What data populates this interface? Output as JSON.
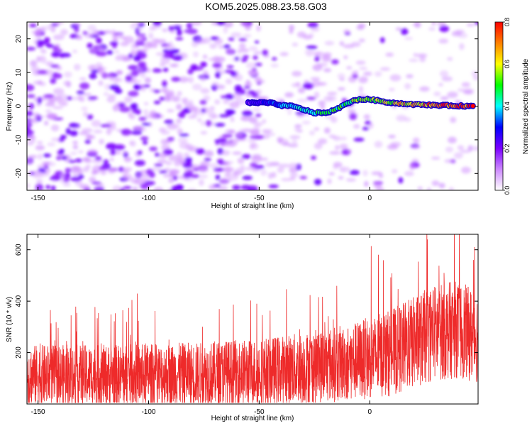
{
  "title": "KOM5.2025.088.23.58.G03",
  "chart_data": [
    {
      "type": "heatmap",
      "panel": "spectrogram",
      "xlabel": "Height of straight line (km)",
      "ylabel": "Frequency (Hz)",
      "xlim": [
        -155,
        49
      ],
      "ylim": [
        -25,
        25
      ],
      "xticks": [
        -150,
        -100,
        -50,
        0
      ],
      "yticks": [
        -20,
        -10,
        0,
        10,
        20
      ],
      "colorbar": {
        "label": "Normalized spectral amplitude",
        "range": [
          0.0,
          0.8
        ],
        "ticks": [
          "0.0",
          "0.2",
          "0.4",
          "0.6",
          "0.8"
        ],
        "colors": [
          "#ffffff",
          "#cc88ff",
          "#7a00ff",
          "#0000ff",
          "#00ffff",
          "#00ff00",
          "#ffff00",
          "#ff8000",
          "#ff0000"
        ]
      },
      "signal_track": {
        "x": [
          -55,
          -45,
          -40,
          -35,
          -30,
          -25,
          -20,
          -15,
          -10,
          -5,
          0,
          10,
          20,
          30,
          40,
          47
        ],
        "frequency": [
          1,
          1,
          0.2,
          0,
          -1,
          -2,
          -2,
          -1,
          1,
          2,
          2,
          1,
          0.5,
          0.3,
          0.1,
          0
        ],
        "amplitude": [
          0.2,
          0.3,
          0.35,
          0.4,
          0.4,
          0.45,
          0.5,
          0.45,
          0.5,
          0.55,
          0.55,
          0.6,
          0.65,
          0.7,
          0.75,
          0.75
        ]
      },
      "noise_texture": "scattered purple/violet speckle (amplitude ~0.05-0.2), denser for x < -50"
    },
    {
      "type": "line",
      "panel": "snr",
      "xlabel": "Height of straight line (km)",
      "ylabel": "SNR (10 * v/v)",
      "xlim": [
        -155,
        49
      ],
      "ylim": [
        0,
        660
      ],
      "xticks": [
        -150,
        -100,
        -50,
        0
      ],
      "yticks": [
        200,
        400,
        600
      ],
      "color": "#ee2a2a",
      "trend": {
        "x": [
          -155,
          -120,
          -80,
          -50,
          -30,
          -10,
          0,
          10,
          20,
          30,
          40,
          49
        ],
        "baseline": [
          110,
          110,
          115,
          125,
          140,
          160,
          180,
          200,
          240,
          280,
          290,
          260
        ],
        "amplitude": [
          120,
          120,
          125,
          130,
          140,
          150,
          160,
          170,
          180,
          190,
          190,
          180
        ]
      }
    }
  ]
}
